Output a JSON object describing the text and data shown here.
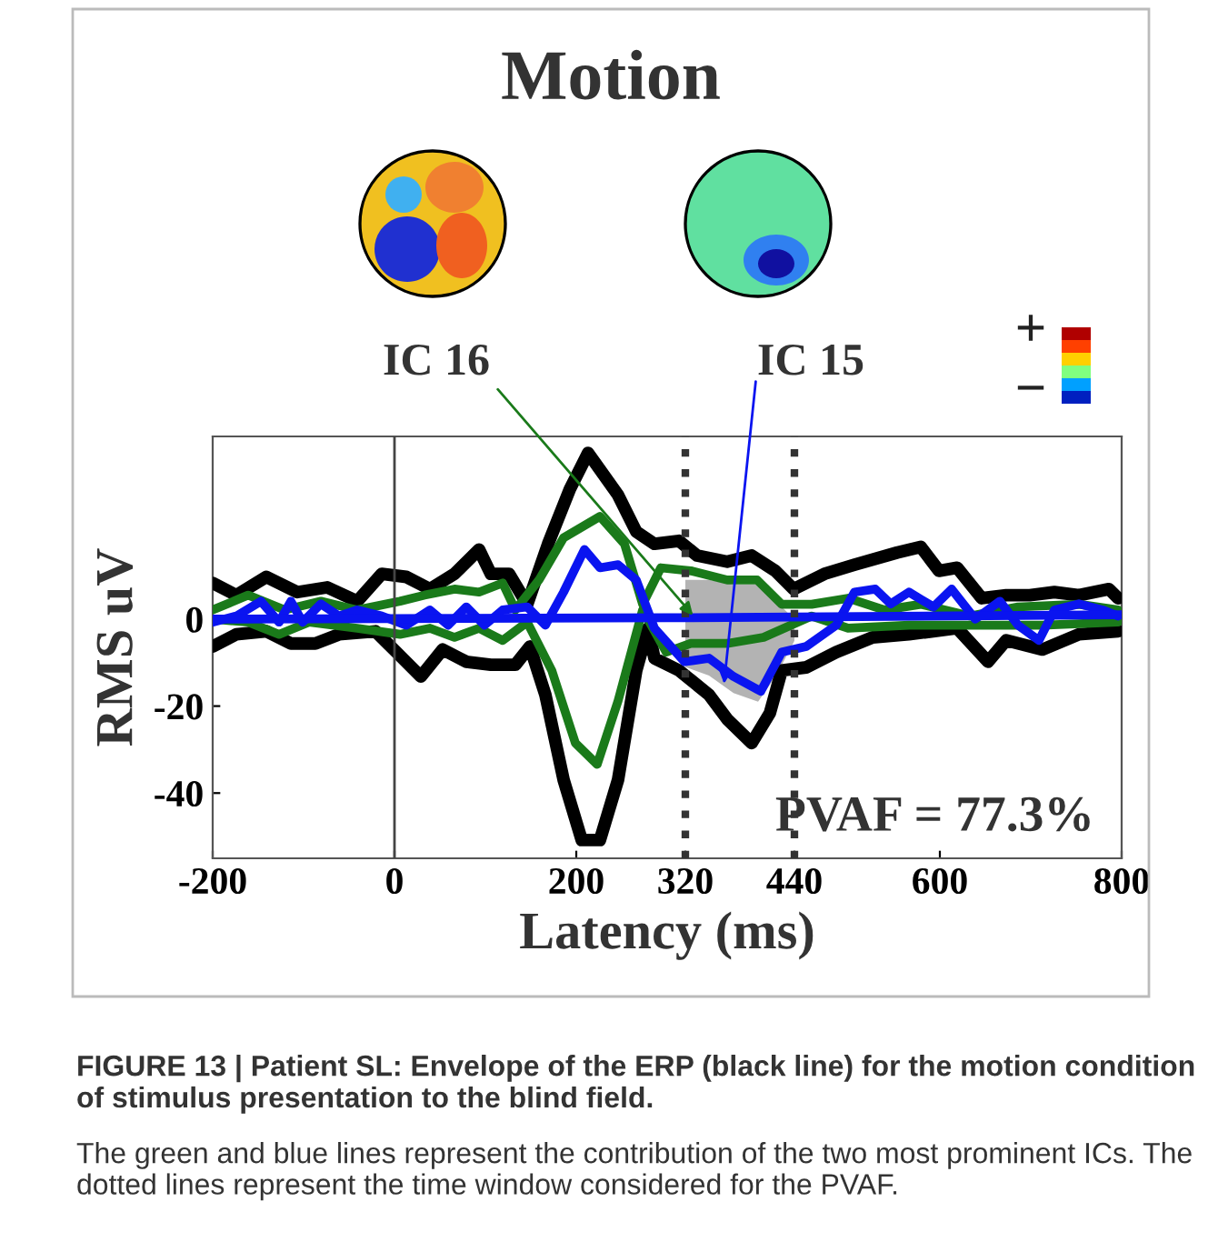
{
  "chart_data": {
    "type": "line",
    "title": "Motion",
    "xlabel": "Latency (ms)",
    "ylabel": "RMS uV",
    "xlim": [
      -200,
      800
    ],
    "xticks": [
      -200,
      0,
      200,
      320,
      440,
      600,
      800
    ],
    "ylim": [
      -55,
      42
    ],
    "yticks": [
      -40,
      -20,
      0
    ],
    "grid": false,
    "legend": false,
    "ref_lines": [
      {
        "axis": "x",
        "value": 0,
        "color": "#444444",
        "line_style": "solid"
      },
      {
        "axis": "x",
        "value": 320,
        "color": "#333333",
        "line_style": "dotted"
      },
      {
        "axis": "x",
        "value": 440,
        "color": "#333333",
        "line_style": "dotted"
      }
    ],
    "series": [
      {
        "color": "#000000",
        "x": [
          -200,
          -174,
          -141,
          -107,
          -74,
          -41,
          -14,
          13,
          39,
          66,
          93,
          106,
          126,
          146,
          169,
          193,
          213,
          246,
          266,
          286,
          313,
          333,
          366,
          393,
          419,
          439,
          473,
          506,
          553,
          579,
          599,
          619,
          646,
          673,
          699,
          726,
          753,
          786,
          796
        ],
        "values": [
          8.3,
          5.5,
          9.7,
          6.2,
          7.3,
          4.1,
          10.4,
          9.7,
          6.9,
          10.4,
          16,
          10.4,
          10.4,
          3.4,
          17.3,
          29.9,
          38.2,
          28.5,
          20.1,
          17.3,
          18,
          14.6,
          13.2,
          14.6,
          11.1,
          6.9,
          10.4,
          12.5,
          15.3,
          16.6,
          11.1,
          11.8,
          4.8,
          5.5,
          5.5,
          6.2,
          5.5,
          6.9,
          4.8
        ]
      },
      {
        "color": "#000000",
        "x": [
          -200,
          -174,
          -141,
          -114,
          -87,
          -61,
          -21,
          6,
          29,
          53,
          79,
          106,
          133,
          149,
          166,
          186,
          206,
          226,
          246,
          266,
          279,
          286,
          313,
          346,
          366,
          393,
          413,
          426,
          453,
          486,
          526,
          566,
          619,
          653,
          673,
          713,
          753,
          796
        ],
        "values": [
          -6.3,
          -3.5,
          -2.8,
          -5.6,
          -5.6,
          -3.5,
          -2.8,
          -8.4,
          -13.2,
          -7,
          -9.8,
          -10.5,
          -10.5,
          -6.3,
          -17.4,
          -36.9,
          -50.8,
          -50.8,
          -36.9,
          -11.8,
          -2.1,
          -9,
          -11.8,
          -17.4,
          -23,
          -28.5,
          -21.6,
          -11.8,
          -11.1,
          -7.6,
          -4.2,
          -3.5,
          -2.1,
          -9.8,
          -4.9,
          -7,
          -3.5,
          -2.8
        ]
      },
      {
        "color": "#1a7a1a",
        "x": [
          -200,
          -161,
          -121,
          -81,
          -41,
          6,
          33,
          66,
          93,
          119,
          133,
          159,
          186,
          226,
          253,
          273,
          293,
          326,
          366,
          399,
          426,
          459,
          499,
          539,
          579,
          633,
          686,
          753,
          796
        ],
        "values": [
          2.1,
          5.5,
          2.1,
          4.1,
          2.1,
          4.1,
          5.5,
          6.9,
          6.2,
          8.3,
          2.1,
          9,
          18.7,
          23.6,
          17.3,
          3.4,
          11.8,
          11.1,
          9,
          9,
          3.4,
          3.4,
          4.8,
          2.1,
          3.4,
          0.7,
          2.8,
          3.4,
          2.1
        ]
      },
      {
        "color": "#1a7a1a",
        "x": [
          -200,
          -161,
          -127,
          -94,
          -41,
          6,
          39,
          66,
          93,
          119,
          146,
          173,
          199,
          223,
          246,
          273,
          299,
          326,
          366,
          406,
          459,
          499,
          566,
          646,
          713,
          796
        ],
        "values": [
          0,
          -0.7,
          -3.5,
          -0.7,
          -2.1,
          -3.5,
          -2.1,
          -4.2,
          -2.1,
          -4.9,
          -0.7,
          -11.8,
          -28.5,
          -33.4,
          -18.8,
          2.1,
          -7.6,
          -5.6,
          -5.6,
          -4.2,
          0.7,
          -2.1,
          -1.4,
          -1.4,
          -1.4,
          -0.7
        ]
      },
      {
        "color": "#0a14f0",
        "x": [
          -200,
          -174,
          -147,
          -127,
          -114,
          -101,
          -81,
          -61,
          -41,
          -14,
          13,
          39,
          59,
          79,
          99,
          119,
          146,
          166,
          186,
          209,
          226,
          246,
          266,
          286,
          319,
          346,
          373,
          403,
          426,
          453,
          486,
          506,
          529,
          546,
          566,
          593,
          613,
          639,
          666,
          686,
          709,
          726,
          753,
          779,
          796
        ],
        "values": [
          -0.7,
          0.7,
          4.1,
          -0.7,
          4.1,
          -0.7,
          3.5,
          0.7,
          2.1,
          0.7,
          -1.4,
          2.1,
          -1.4,
          2.8,
          -1.4,
          2.1,
          2.8,
          -1.4,
          6.2,
          16,
          11.8,
          12.5,
          9,
          -2.1,
          -9.8,
          -9,
          -13.2,
          -16.6,
          -7.6,
          -6.3,
          -1.4,
          6.2,
          6.9,
          3.5,
          6.2,
          2.8,
          6.9,
          0,
          4.1,
          -1.4,
          -4.9,
          2.1,
          3.5,
          2.1,
          0.7
        ]
      },
      {
        "color": "#0a14f0",
        "x": [
          -200,
          300,
          800
        ],
        "values": [
          0,
          0.3,
          1
        ]
      },
      {
        "type": "area",
        "color": "#b3b3b3",
        "x": [
          320,
          346,
          373,
          400,
          420,
          440
        ],
        "values": [
          9,
          9,
          8,
          8,
          4,
          0
        ]
      },
      {
        "type": "area",
        "color": "#b3b3b3",
        "x": [
          320,
          346,
          373,
          400,
          420,
          440
        ],
        "values": [
          -11,
          -13,
          -17,
          -19,
          -13,
          -5
        ]
      }
    ],
    "annotations": [
      "PVAF = 77.3%",
      {
        "text": "IC 16",
        "x": 332,
        "y": 0
      },
      {
        "text": "IC 15",
        "x": 362,
        "y": -16
      },
      "+",
      "−",
      "FIGURE 13 | Patient SL: Envelope of the ERP (black line) for the motion condition of stimulus presentation to the blind field.",
      "The green and blue lines represent the contribution of the two most prominent ICs. The dotted lines represent the time window considered for the PVAF."
    ]
  }
}
